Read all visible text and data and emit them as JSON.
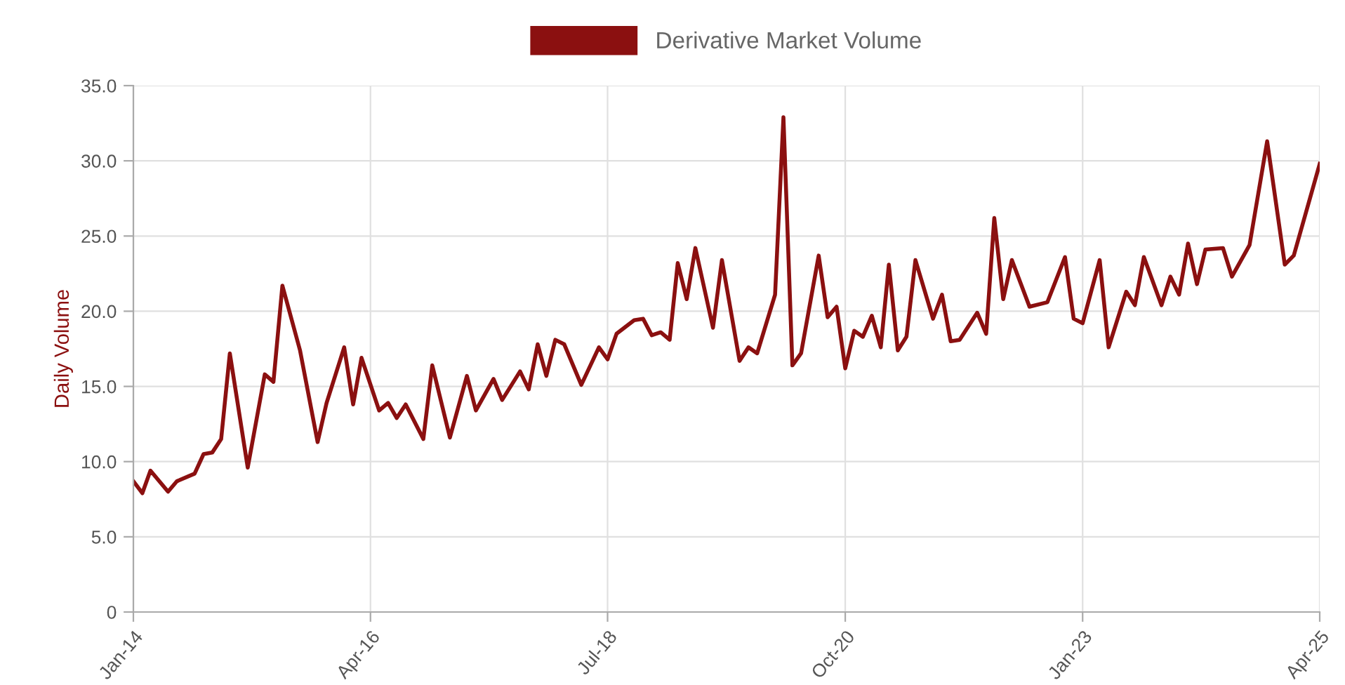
{
  "chart_data": {
    "type": "line",
    "ylabel": "Daily Volume",
    "legend": "top",
    "grid": true,
    "marker": "none",
    "line_style": "solid",
    "xlim": [
      "2014-01",
      "2025-04"
    ],
    "ylim": [
      0,
      35
    ],
    "xticks": [
      {
        "value": "2014-01",
        "label": "Jan-14"
      },
      {
        "value": "2016-04",
        "label": "Apr-16"
      },
      {
        "value": "2018-07",
        "label": "Jul-18"
      },
      {
        "value": "2020-10",
        "label": "Oct-20"
      },
      {
        "value": "2023-01",
        "label": "Jan-23"
      },
      {
        "value": "2025-04",
        "label": "Apr-25"
      }
    ],
    "yticks": [
      0,
      {
        "value": 5,
        "label": "5.0"
      },
      {
        "value": 10,
        "label": "10.0"
      },
      {
        "value": 15,
        "label": "15.0"
      },
      {
        "value": 20,
        "label": "20.0"
      },
      {
        "value": 25,
        "label": "25.0"
      },
      {
        "value": 30,
        "label": "30.0"
      },
      {
        "value": 35,
        "label": "35.0"
      }
    ],
    "series": [
      {
        "name": "Derivative Market Volume",
        "color": "#8b1010",
        "x": [
          "2014-01",
          "2014-02",
          "2014-03",
          "2014-05",
          "2014-06",
          "2014-08",
          "2014-09",
          "2014-10",
          "2014-11",
          "2014-12",
          "2015-02",
          "2015-04",
          "2015-05",
          "2015-06",
          "2015-08",
          "2015-10",
          "2015-11",
          "2016-01",
          "2016-02",
          "2016-03",
          "2016-05",
          "2016-06",
          "2016-07",
          "2016-08",
          "2016-10",
          "2016-11",
          "2017-01",
          "2017-03",
          "2017-04",
          "2017-06",
          "2017-07",
          "2017-09",
          "2017-10",
          "2017-11",
          "2017-12",
          "2018-01",
          "2018-02",
          "2018-04",
          "2018-06",
          "2018-07",
          "2018-08",
          "2018-10",
          "2018-11",
          "2018-12",
          "2019-01",
          "2019-02",
          "2019-03",
          "2019-04",
          "2019-05",
          "2019-07",
          "2019-08",
          "2019-10",
          "2019-11",
          "2019-12",
          "2020-02",
          "2020-03",
          "2020-04",
          "2020-05",
          "2020-07",
          "2020-08",
          "2020-09",
          "2020-10",
          "2020-11",
          "2020-12",
          "2021-01",
          "2021-02",
          "2021-03",
          "2021-04",
          "2021-05",
          "2021-06",
          "2021-08",
          "2021-09",
          "2021-10",
          "2021-11",
          "2022-01",
          "2022-02",
          "2022-03",
          "2022-04",
          "2022-05",
          "2022-07",
          "2022-09",
          "2022-11",
          "2022-12",
          "2023-01",
          "2023-03",
          "2023-04",
          "2023-06",
          "2023-07",
          "2023-08",
          "2023-10",
          "2023-11",
          "2023-12",
          "2024-01",
          "2024-02",
          "2024-03",
          "2024-05",
          "2024-06",
          "2024-08",
          "2024-10",
          "2024-12",
          "2025-01",
          "2025-04"
        ],
        "values": [
          8.7,
          7.9,
          9.4,
          8.0,
          8.7,
          9.2,
          10.5,
          10.6,
          11.5,
          17.2,
          9.6,
          15.8,
          15.3,
          21.7,
          17.4,
          11.3,
          13.9,
          17.6,
          13.8,
          16.9,
          13.4,
          13.9,
          12.9,
          13.8,
          11.5,
          16.4,
          11.6,
          15.7,
          13.4,
          15.5,
          14.1,
          16.0,
          14.8,
          17.8,
          15.7,
          18.1,
          17.8,
          15.1,
          17.6,
          16.8,
          18.5,
          19.4,
          19.5,
          18.4,
          18.6,
          18.1,
          23.2,
          20.8,
          24.2,
          18.9,
          23.4,
          16.7,
          17.6,
          17.2,
          21.1,
          32.9,
          16.4,
          17.2,
          23.7,
          19.6,
          20.3,
          16.2,
          18.7,
          18.3,
          19.7,
          17.6,
          23.1,
          17.4,
          18.3,
          23.4,
          19.5,
          21.1,
          18.0,
          18.1,
          19.9,
          18.5,
          26.2,
          20.8,
          23.4,
          20.3,
          20.6,
          23.6,
          19.5,
          19.2,
          23.4,
          17.6,
          21.3,
          20.4,
          23.6,
          20.4,
          22.3,
          21.1,
          24.5,
          21.8,
          24.1,
          24.2,
          22.3,
          24.4,
          31.3,
          23.1,
          23.7,
          29.8
        ]
      }
    ]
  }
}
